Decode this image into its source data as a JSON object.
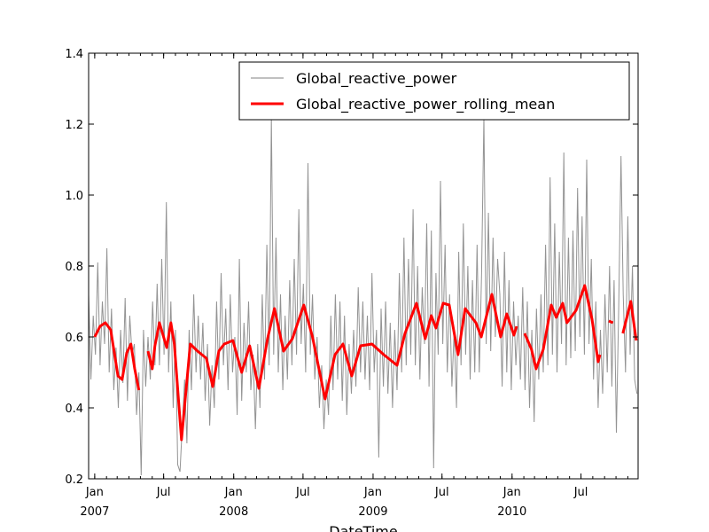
{
  "chart_data": {
    "type": "line",
    "xlabel": "DateTime",
    "ylabel": "",
    "xlim": [
      "2006-12-16",
      "2010-11-28"
    ],
    "ylim": [
      0.2,
      1.4
    ],
    "yticks": [
      "0.2",
      "0.4",
      "0.6",
      "0.8",
      "1.0",
      "1.2",
      "1.4"
    ],
    "xticks": [
      {
        "date": "2007-01-01",
        "label": "Jan",
        "year": "2007"
      },
      {
        "date": "2007-07-01",
        "label": "Jul",
        "year": ""
      },
      {
        "date": "2008-01-01",
        "label": "Jan",
        "year": "2008"
      },
      {
        "date": "2008-07-01",
        "label": "Jul",
        "year": ""
      },
      {
        "date": "2009-01-01",
        "label": "Jan",
        "year": "2009"
      },
      {
        "date": "2009-07-01",
        "label": "Jul",
        "year": ""
      },
      {
        "date": "2010-01-01",
        "label": "Jan",
        "year": "2010"
      },
      {
        "date": "2010-07-01",
        "label": "Jul",
        "year": ""
      }
    ],
    "grid": false,
    "legend": "top-right",
    "series": [
      {
        "name": "Global_reactive_power",
        "color": "#808080",
        "start": "2006-12-16",
        "step_days": 6,
        "values": [
          0.72,
          0.48,
          0.66,
          0.55,
          0.81,
          0.52,
          0.7,
          0.58,
          0.85,
          0.5,
          0.68,
          0.45,
          0.57,
          0.4,
          0.62,
          0.47,
          0.71,
          0.42,
          0.66,
          0.55,
          0.58,
          0.38,
          0.5,
          0.21,
          0.62,
          0.46,
          0.6,
          0.48,
          0.7,
          0.52,
          0.75,
          0.52,
          0.82,
          0.55,
          0.98,
          0.5,
          0.7,
          0.4,
          0.62,
          0.24,
          0.22,
          0.35,
          0.48,
          0.3,
          0.62,
          0.45,
          0.72,
          0.5,
          0.66,
          0.48,
          0.64,
          0.42,
          0.58,
          0.35,
          0.52,
          0.4,
          0.7,
          0.48,
          0.78,
          0.52,
          0.68,
          0.45,
          0.72,
          0.5,
          0.6,
          0.38,
          0.82,
          0.42,
          0.64,
          0.5,
          0.7,
          0.45,
          0.55,
          0.34,
          0.58,
          0.4,
          0.72,
          0.48,
          0.86,
          0.52,
          1.22,
          0.55,
          0.88,
          0.5,
          0.72,
          0.45,
          0.66,
          0.48,
          0.76,
          0.52,
          0.82,
          0.55,
          0.96,
          0.58,
          0.75,
          0.5,
          1.09,
          0.55,
          0.72,
          0.48,
          0.6,
          0.4,
          0.52,
          0.34,
          0.48,
          0.38,
          0.66,
          0.45,
          0.72,
          0.48,
          0.7,
          0.42,
          0.66,
          0.38,
          0.58,
          0.44,
          0.62,
          0.46,
          0.74,
          0.5,
          0.7,
          0.48,
          0.66,
          0.45,
          0.78,
          0.5,
          0.62,
          0.26,
          0.68,
          0.46,
          0.7,
          0.44,
          0.64,
          0.4,
          0.62,
          0.45,
          0.78,
          0.5,
          0.88,
          0.52,
          0.82,
          0.55,
          0.96,
          0.52,
          0.8,
          0.48,
          0.74,
          0.58,
          0.92,
          0.46,
          0.9,
          0.23,
          0.78,
          0.55,
          1.04,
          0.58,
          0.86,
          0.5,
          0.72,
          0.46,
          0.62,
          0.4,
          0.84,
          0.52,
          0.92,
          0.55,
          0.8,
          0.48,
          0.76,
          0.5,
          0.86,
          0.5,
          0.78,
          1.22,
          0.58,
          0.95,
          0.56,
          0.88,
          0.6,
          0.82,
          0.72,
          0.46,
          0.84,
          0.5,
          0.76,
          0.45,
          0.7,
          0.52,
          0.66,
          0.48,
          0.74,
          0.45,
          0.7,
          0.4,
          0.62,
          0.36,
          0.68,
          0.48,
          0.72,
          0.5,
          0.86,
          0.52,
          1.05,
          0.55,
          0.92,
          0.5,
          0.84,
          0.58,
          1.12,
          0.52,
          0.88,
          0.54,
          0.9,
          0.56,
          1.02,
          0.6,
          0.94,
          0.55,
          1.1,
          0.58,
          0.82,
          0.48,
          0.7,
          0.4,
          0.62,
          0.44,
          0.72,
          0.5,
          0.8,
          0.46,
          0.76,
          0.33,
          0.68,
          1.11,
          0.72,
          0.5,
          0.94,
          0.55,
          0.8,
          0.48,
          0.44
        ]
      },
      {
        "name": "Global_reactive_power_rolling_mean",
        "color": "#ff0000",
        "points": [
          [
            "2007-01-01",
            0.6
          ],
          [
            "2007-01-15",
            0.63
          ],
          [
            "2007-01-29",
            0.64
          ],
          [
            "2007-02-12",
            0.62
          ],
          [
            "2007-03-03",
            0.49
          ],
          [
            "2007-03-14",
            0.48
          ],
          [
            "2007-03-26",
            0.555
          ],
          [
            "2007-04-06",
            0.58
          ],
          [
            "2007-04-16",
            0.51
          ],
          [
            "2007-04-27",
            0.45
          ],
          [
            "2007-05-10",
            null
          ],
          [
            "2007-05-21",
            0.56
          ],
          [
            "2007-06-01",
            0.51
          ],
          [
            "2007-06-08",
            0.575
          ],
          [
            "2007-06-20",
            0.64
          ],
          [
            "2007-07-09",
            0.57
          ],
          [
            "2007-07-20",
            0.64
          ],
          [
            "2007-07-29",
            0.58
          ],
          [
            "2007-08-17",
            0.31
          ],
          [
            "2007-09-09",
            0.58
          ],
          [
            "2007-09-28",
            0.56
          ],
          [
            "2007-10-21",
            0.54
          ],
          [
            "2007-11-07",
            0.46
          ],
          [
            "2007-11-23",
            0.56
          ],
          [
            "2007-12-07",
            0.58
          ],
          [
            "2007-12-30",
            0.59
          ],
          [
            "2008-01-22",
            0.5
          ],
          [
            "2008-02-12",
            0.575
          ],
          [
            "2008-03-07",
            0.455
          ],
          [
            "2008-03-30",
            0.595
          ],
          [
            "2008-04-17",
            0.68
          ],
          [
            "2008-05-11",
            0.56
          ],
          [
            "2008-06-03",
            0.595
          ],
          [
            "2008-07-03",
            0.69
          ],
          [
            "2008-07-26",
            0.6
          ],
          [
            "2008-08-28",
            0.425
          ],
          [
            "2008-09-23",
            0.55
          ],
          [
            "2008-10-14",
            0.58
          ],
          [
            "2008-11-06",
            0.49
          ],
          [
            "2008-11-29",
            0.575
          ],
          [
            "2008-12-29",
            0.58
          ],
          [
            "2009-01-29",
            0.55
          ],
          [
            "2009-03-05",
            0.52
          ],
          [
            "2009-03-26",
            0.61
          ],
          [
            "2009-04-25",
            0.695
          ],
          [
            "2009-05-18",
            0.595
          ],
          [
            "2009-06-03",
            0.66
          ],
          [
            "2009-06-15",
            0.625
          ],
          [
            "2009-07-04",
            0.695
          ],
          [
            "2009-07-20",
            0.69
          ],
          [
            "2009-08-12",
            0.55
          ],
          [
            "2009-08-31",
            0.68
          ],
          [
            "2009-09-28",
            0.64
          ],
          [
            "2009-10-12",
            0.6
          ],
          [
            "2009-11-09",
            0.72
          ],
          [
            "2009-12-02",
            0.6
          ],
          [
            "2009-12-18",
            0.665
          ],
          [
            "2010-01-06",
            0.605
          ],
          [
            "2010-01-13",
            0.63
          ],
          [
            "2010-01-24",
            null
          ],
          [
            "2010-02-03",
            0.61
          ],
          [
            "2010-02-21",
            0.565
          ],
          [
            "2010-03-05",
            0.51
          ],
          [
            "2010-03-24",
            0.565
          ],
          [
            "2010-04-14",
            0.69
          ],
          [
            "2010-04-27",
            0.655
          ],
          [
            "2010-05-14",
            0.695
          ],
          [
            "2010-05-25",
            0.64
          ],
          [
            "2010-06-18",
            0.675
          ],
          [
            "2010-07-11",
            0.745
          ],
          [
            "2010-07-30",
            0.65
          ],
          [
            "2010-08-15",
            0.53
          ],
          [
            "2010-08-20",
            0.55
          ],
          [
            "2010-09-01",
            null
          ],
          [
            "2010-09-12",
            0.645
          ],
          [
            "2010-09-23",
            0.64
          ],
          [
            "2010-10-08",
            null
          ],
          [
            "2010-10-19",
            0.61
          ],
          [
            "2010-11-09",
            0.7
          ],
          [
            "2010-11-23",
            0.59
          ]
        ]
      }
    ]
  }
}
